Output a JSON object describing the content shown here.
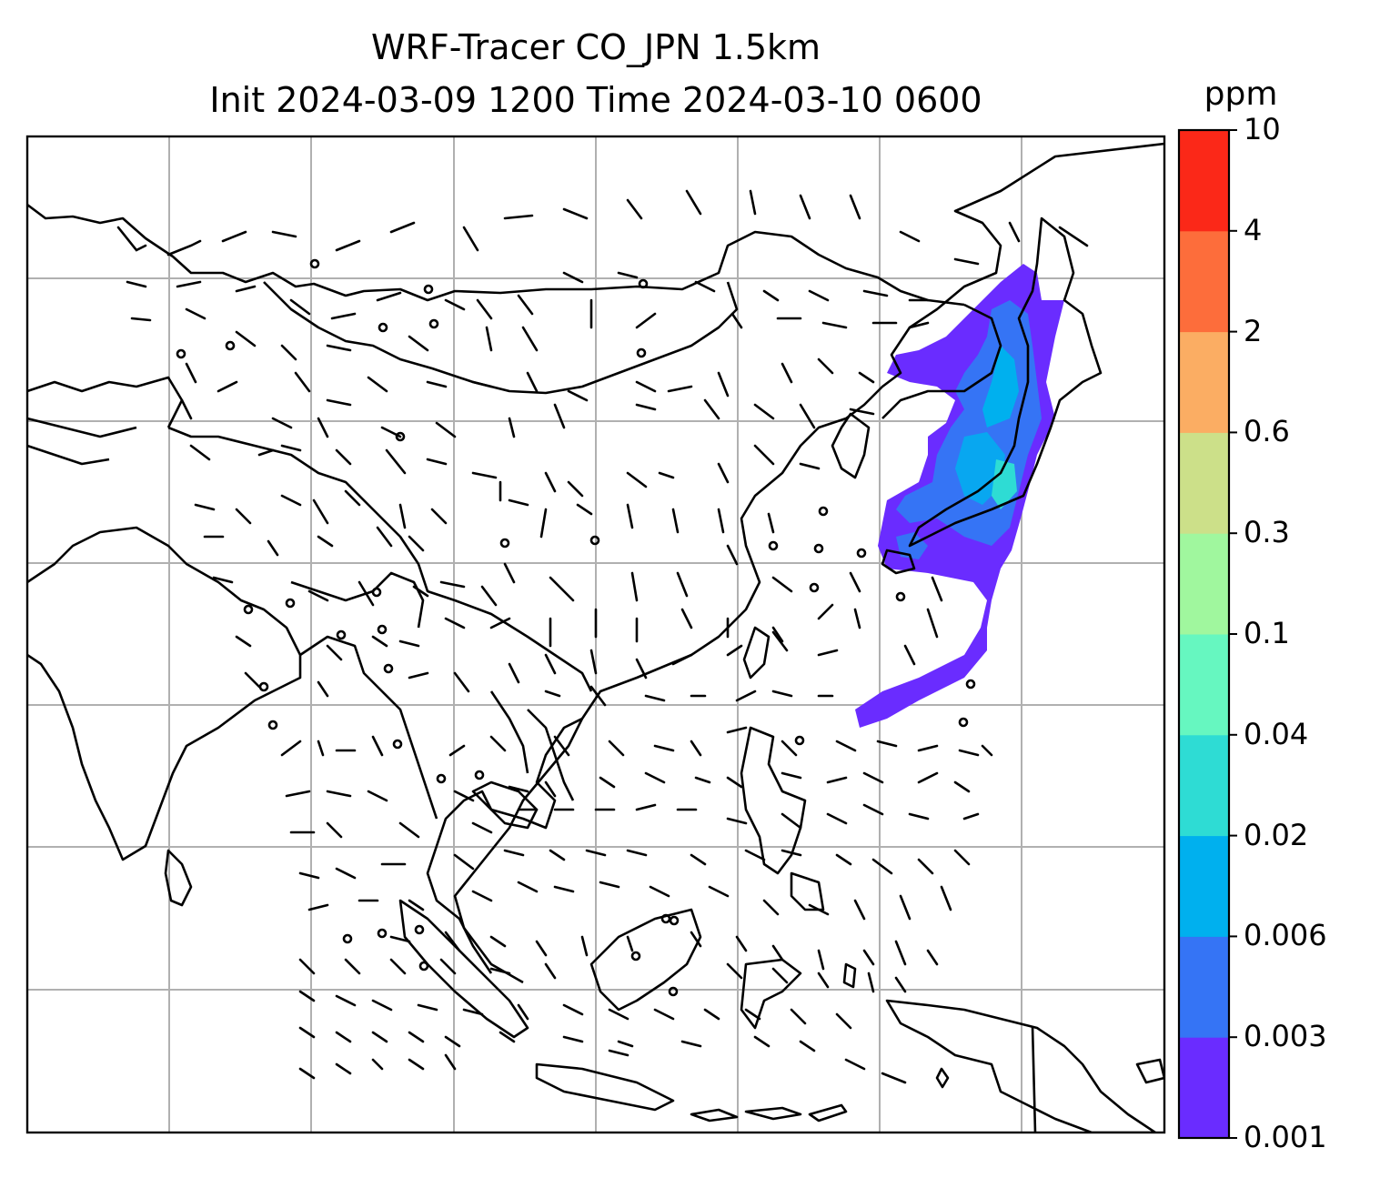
{
  "title": {
    "line1": "WRF-Tracer CO_JPN 1.5km",
    "line2": "Init 2024-03-09 1200 Time 2024-03-10 0600"
  },
  "colorbar": {
    "unit": "ppm",
    "levels": [
      "0.001",
      "0.003",
      "0.006",
      "0.02",
      "0.04",
      "0.1",
      "0.3",
      "0.6",
      "2",
      "4",
      "10"
    ],
    "colors": [
      "#6a2cff",
      "#3574f5",
      "#00b0ee",
      "#2edcd4",
      "#66f7c0",
      "#a0f79e",
      "#cce089",
      "#fbad63",
      "#fd6d3b",
      "#fb2818"
    ]
  },
  "map": {
    "gridlines": true,
    "gridline_color": "#b0b0b0",
    "coastline_color": "#000000",
    "features": [
      "coastlines",
      "country borders",
      "wind barbs",
      "calm-wind circles",
      "CO tracer concentration contours"
    ]
  }
}
